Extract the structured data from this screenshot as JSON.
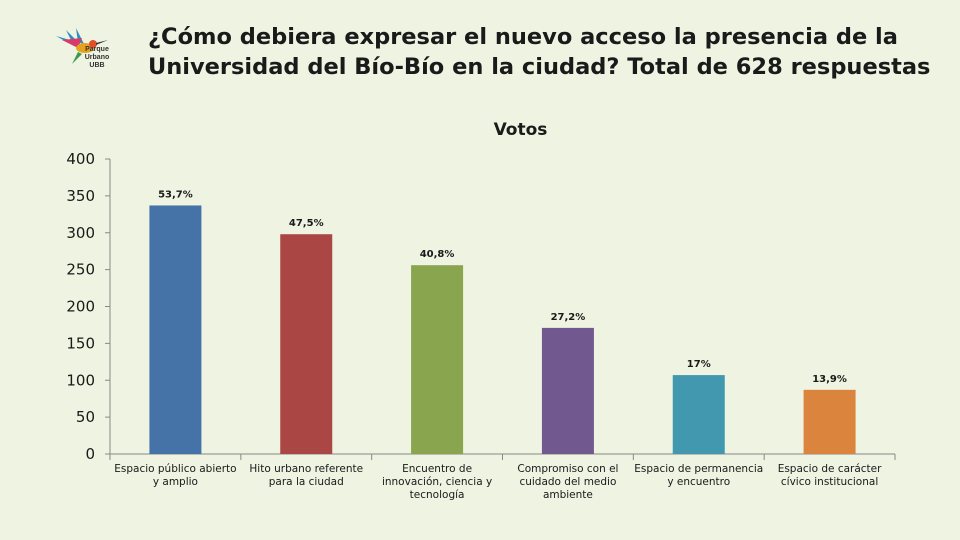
{
  "slide": {
    "title": "¿Cómo debiera expresar el nuevo acceso la presencia de la Universidad del Bío-Bío en la ciudad? Total de 628 respuestas",
    "logo_lines": [
      "Parque",
      "Urbano",
      "UBB"
    ]
  },
  "chart_data": {
    "type": "bar",
    "title": "Votos",
    "categories": [
      "Espacio público abierto y amplio",
      "Hito urbano referente para la ciudad",
      "Encuentro de innovación, ciencia y tecnología",
      "Compromiso con el cuidado del medio ambiente",
      "Espacio de permanencia y encuentro",
      "Espacio de carácter cívico institucional"
    ],
    "category_lines": [
      [
        "Espacio público abierto",
        "y amplio"
      ],
      [
        "Hito urbano referente",
        "para la ciudad"
      ],
      [
        "Encuentro de",
        "innovación, ciencia y",
        "tecnología"
      ],
      [
        "Compromiso con el",
        "cuidado del medio",
        "ambiente"
      ],
      [
        "Espacio de permanencia",
        "y encuentro"
      ],
      [
        "Espacio de carácter",
        "cívico institucional"
      ]
    ],
    "values": [
      337,
      298,
      256,
      171,
      107,
      87
    ],
    "data_labels": [
      "53,7%",
      "47,5%",
      "40,8%",
      "27,2%",
      "17%",
      "13,9%"
    ],
    "colors": [
      "#4572a7",
      "#aa4643",
      "#89a54e",
      "#71588f",
      "#4198af",
      "#db843d"
    ],
    "ylim": [
      0,
      400
    ],
    "yticks": [
      0,
      50,
      100,
      150,
      200,
      250,
      300,
      350,
      400
    ],
    "grid": false,
    "legend": "none"
  }
}
